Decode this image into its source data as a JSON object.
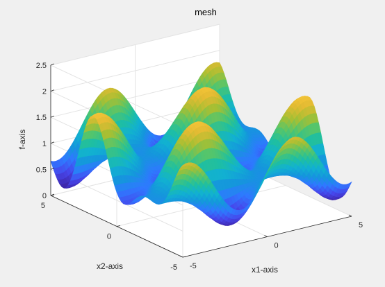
{
  "chart_data": {
    "type": "surface",
    "title": "mesh",
    "xlabel": "x1-axis",
    "ylabel": "x2-axis",
    "zlabel": "f-axis",
    "function": "f(x1,x2) = 1 + 0.6*sin(x1)*sin(x2) - 0.35*cos(1.7*x2)",
    "xlim": [
      -5,
      5
    ],
    "ylim": [
      -5,
      5
    ],
    "zlim": [
      0,
      2.5
    ],
    "x_ticks": [
      "-5",
      "0",
      "5"
    ],
    "y_ticks": [
      "-5",
      "0",
      "5"
    ],
    "z_ticks": [
      "0",
      "0.5",
      "1",
      "1.5",
      "2",
      "2.5"
    ],
    "grid": true,
    "colormap": [
      "#3e26a8",
      "#4746eb",
      "#2f79ff",
      "#1596dc",
      "#12b1d1",
      "#1fbfa1",
      "#54c56c",
      "#a7bf33",
      "#e3bb33",
      "#fbc839",
      "#f9fb0e"
    ]
  }
}
